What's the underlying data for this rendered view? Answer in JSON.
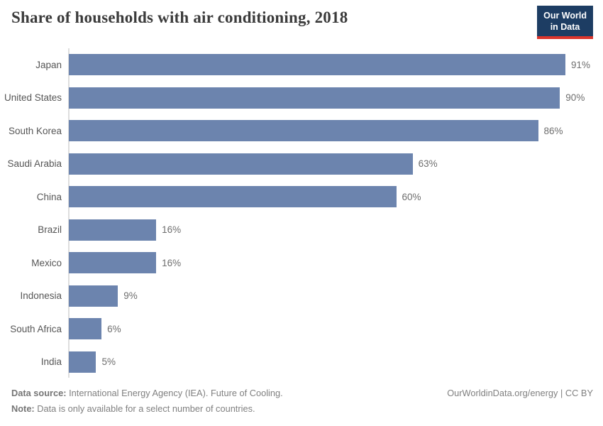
{
  "header": {
    "title": "Share of households with air conditioning, 2018",
    "logo": {
      "line1": "Our World",
      "line2": "in Data"
    }
  },
  "chart_data": {
    "type": "bar",
    "orientation": "horizontal",
    "title": "Share of households with air conditioning, 2018",
    "categories": [
      "Japan",
      "United States",
      "South Korea",
      "Saudi Arabia",
      "China",
      "Brazil",
      "Mexico",
      "Indonesia",
      "South Africa",
      "India"
    ],
    "values": [
      91,
      90,
      86,
      63,
      60,
      16,
      16,
      9,
      6,
      5
    ],
    "value_labels": [
      "91%",
      "90%",
      "86%",
      "63%",
      "60%",
      "16%",
      "16%",
      "9%",
      "6%",
      "5%"
    ],
    "unit": "%",
    "xlim": [
      0,
      91
    ],
    "bar_color": "#6c84ae",
    "axis_visible": "left-line-only",
    "legend": "none",
    "grid": "off"
  },
  "footer": {
    "source_label": "Data source:",
    "source_text": " International Energy Agency (IEA). Future of Cooling.",
    "note_label": "Note:",
    "note_text": " Data is only available for a select number of countries.",
    "right_text": "OurWorldinData.org/energy | CC BY"
  }
}
